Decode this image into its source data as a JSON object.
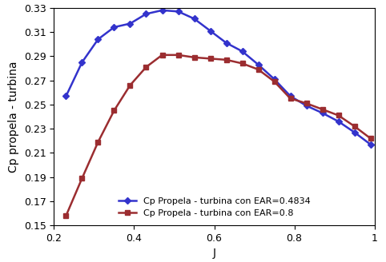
{
  "chart_data": {
    "type": "line",
    "x_label": "J",
    "y_label": "Cp propela - turbina",
    "x": [
      0.23,
      0.27,
      0.31,
      0.35,
      0.39,
      0.43,
      0.47,
      0.51,
      0.55,
      0.59,
      0.63,
      0.67,
      0.71,
      0.75,
      0.79,
      0.83,
      0.87,
      0.91,
      0.95,
      0.99
    ],
    "series": [
      {
        "name": "Cp Propela - turbina con EAR=0.4834",
        "color": "#3333cc",
        "marker": "diamond",
        "values": [
          0.257,
          0.285,
          0.304,
          0.314,
          0.317,
          0.325,
          0.328,
          0.327,
          0.321,
          0.311,
          0.301,
          0.294,
          0.283,
          0.271,
          0.257,
          0.249,
          0.243,
          0.236,
          0.227,
          0.217
        ]
      },
      {
        "name": "Cp Propela - turbina con EAR=0.8",
        "color": "#9b2d30",
        "marker": "square",
        "values": [
          0.158,
          0.189,
          0.219,
          0.245,
          0.266,
          0.281,
          0.291,
          0.291,
          0.289,
          0.288,
          0.287,
          0.284,
          0.279,
          0.269,
          0.255,
          0.251,
          0.246,
          0.241,
          0.232,
          0.222
        ]
      }
    ],
    "xlim": [
      0.2,
      1
    ],
    "xticks": [
      0.2,
      0.4,
      0.6,
      0.8,
      1
    ],
    "ylim": [
      0.15,
      0.33
    ],
    "yticks": [
      0.15,
      0.17,
      0.19,
      0.21,
      0.23,
      0.25,
      0.27,
      0.29,
      0.31,
      0.33
    ],
    "grid": false,
    "legend": "lower center"
  }
}
